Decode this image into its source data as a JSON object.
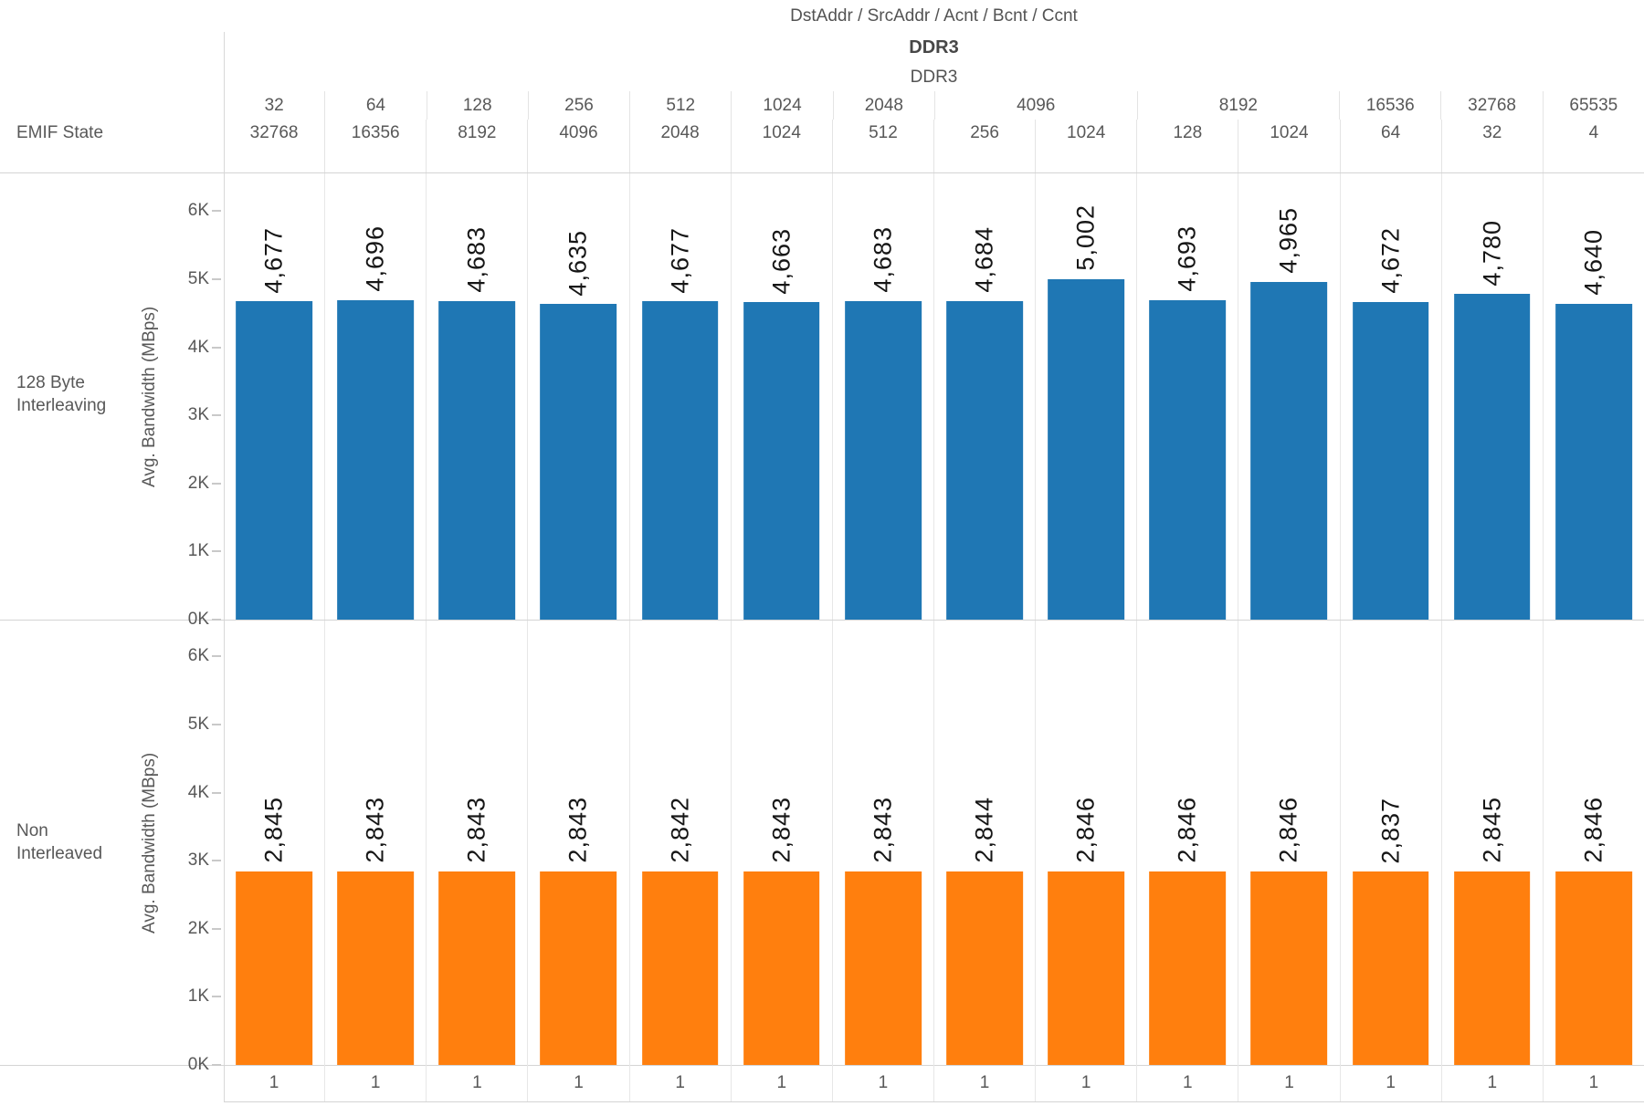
{
  "header": {
    "fields_title": "DstAddr  /  SrcAddr  /  Acnt  /  Bcnt  /  Ccnt",
    "level1": "DDR3",
    "level2": "DDR3",
    "emif_state_label": "EMIF State"
  },
  "y_axis": {
    "title": "Avg. Bandwidth (MBps)",
    "ticks": [
      "0K",
      "1K",
      "2K",
      "3K",
      "4K",
      "5K",
      "6K"
    ]
  },
  "row_labels": [
    {
      "line1": "128 Byte",
      "line2": "Interleaving"
    },
    {
      "line1": "Non",
      "line2": "Interleaved"
    }
  ],
  "columns": {
    "groups": [
      {
        "label": "32",
        "span": 1
      },
      {
        "label": "64",
        "span": 1
      },
      {
        "label": "128",
        "span": 1
      },
      {
        "label": "256",
        "span": 1
      },
      {
        "label": "512",
        "span": 1
      },
      {
        "label": "1024",
        "span": 1
      },
      {
        "label": "2048",
        "span": 1
      },
      {
        "label": "4096",
        "span": 2
      },
      {
        "label": "8192",
        "span": 2
      },
      {
        "label": "16536",
        "span": 1
      },
      {
        "label": "32768",
        "span": 1
      },
      {
        "label": "65535",
        "span": 1
      }
    ],
    "subheaders": [
      "32768",
      "16356",
      "8192",
      "4096",
      "2048",
      "1024",
      "512",
      "256",
      "1024",
      "128",
      "1024",
      "64",
      "32",
      "4"
    ],
    "bottom_ticks": [
      "1",
      "1",
      "1",
      "1",
      "1",
      "1",
      "1",
      "1",
      "1",
      "1",
      "1",
      "1",
      "1",
      "1"
    ]
  },
  "chart_data": {
    "type": "bar",
    "title": "DstAddr / SrcAddr / Acnt / Bcnt / Ccnt",
    "facet_levels": [
      "DDR3",
      "DDR3"
    ],
    "row_facets": [
      "128 Byte Interleaving",
      "Non Interleaved"
    ],
    "ylabel": "Avg. Bandwidth (MBps)",
    "ylim": [
      0,
      6550
    ],
    "yticks_k": [
      0,
      1,
      2,
      3,
      4,
      5,
      6
    ],
    "categories_top": [
      "32",
      "64",
      "128",
      "256",
      "512",
      "1024",
      "2048",
      "4096",
      "4096",
      "8192",
      "8192",
      "16536",
      "32768",
      "65535"
    ],
    "categories_bottom": [
      "32768",
      "16356",
      "8192",
      "4096",
      "2048",
      "1024",
      "512",
      "256",
      "1024",
      "128",
      "1024",
      "64",
      "32",
      "4"
    ],
    "x_axis_row": [
      "1",
      "1",
      "1",
      "1",
      "1",
      "1",
      "1",
      "1",
      "1",
      "1",
      "1",
      "1",
      "1",
      "1"
    ],
    "series": [
      {
        "name": "128 Byte Interleaving",
        "color": "#1f77b4",
        "values": [
          4677,
          4696,
          4683,
          4635,
          4677,
          4663,
          4683,
          4684,
          5002,
          4693,
          4965,
          4672,
          4780,
          4640
        ],
        "labels": [
          "4,677",
          "4,696",
          "4,683",
          "4,635",
          "4,677",
          "4,663",
          "4,683",
          "4,684",
          "5,002",
          "4,693",
          "4,965",
          "4,672",
          "4,780",
          "4,640"
        ]
      },
      {
        "name": "Non Interleaved",
        "color": "#ff7f0e",
        "values": [
          2845,
          2843,
          2843,
          2843,
          2842,
          2843,
          2843,
          2844,
          2846,
          2846,
          2846,
          2837,
          2845,
          2846
        ],
        "labels": [
          "2,845",
          "2,843",
          "2,843",
          "2,843",
          "2,842",
          "2,843",
          "2,843",
          "2,844",
          "2,846",
          "2,846",
          "2,846",
          "2,837",
          "2,845",
          "2,846"
        ]
      }
    ]
  },
  "colors": {
    "bar_blue": "#1f77b4",
    "bar_orange": "#ff7f0e",
    "grid_line": "#e7e7e7",
    "pane_border": "#d4d4d4",
    "text_gray": "#585858"
  }
}
